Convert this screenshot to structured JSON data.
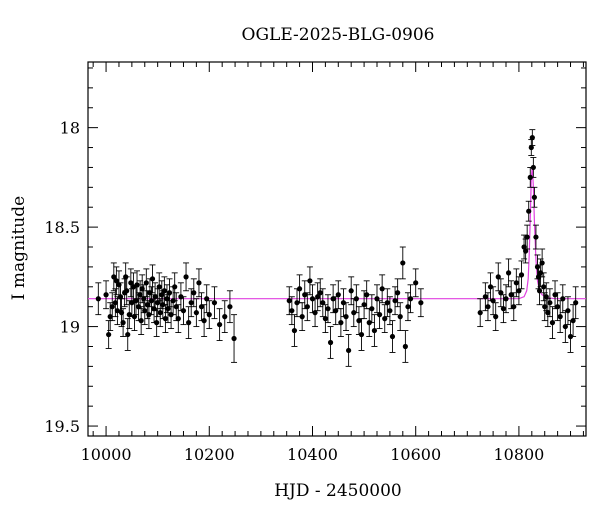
{
  "chart_data": {
    "type": "scatter",
    "title": "OGLE-2025-BLG-0906",
    "xlabel": "HJD - 2450000",
    "ylabel": "I magnitude",
    "xlim": [
      9965,
      10930
    ],
    "ylim": [
      19.55,
      17.67
    ],
    "y_inverted": true,
    "xticks": [
      10000,
      10200,
      10400,
      10600,
      10800
    ],
    "yticks": [
      18,
      18.5,
      19,
      19.5
    ],
    "ytick_labels": [
      "18",
      "18.5",
      "19",
      "19.5"
    ],
    "grid": false,
    "colors": {
      "points": "#000000",
      "model": "#e040e0"
    },
    "baseline_mag": 18.86,
    "model_curve": {
      "x": [
        9965,
        10780,
        10800,
        10810,
        10815,
        10818,
        10820,
        10822,
        10824,
        10826,
        10828,
        10830,
        10833,
        10836,
        10840,
        10845,
        10855,
        10870,
        10930
      ],
      "y": [
        18.86,
        18.86,
        18.86,
        18.85,
        18.82,
        18.76,
        18.64,
        18.45,
        18.25,
        18.2,
        18.3,
        18.47,
        18.66,
        18.77,
        18.82,
        18.84,
        18.855,
        18.86,
        18.86
      ]
    },
    "series": [
      {
        "x": [
          9985,
          10000,
          10005,
          10008,
          10012,
          10015,
          10018,
          10020,
          10022,
          10025,
          10028,
          10030,
          10033,
          10036,
          10038,
          10040,
          10042,
          10045,
          10048,
          10050,
          10053,
          10055,
          10058,
          10060,
          10063,
          10066,
          10068,
          10070,
          10073,
          10075,
          10078,
          10080,
          10083,
          10085,
          10088,
          10090,
          10093,
          10095,
          10098,
          10100,
          10103,
          10105,
          10108,
          10110,
          10113,
          10115,
          10118,
          10120,
          10123,
          10126,
          10130,
          10133,
          10136,
          10140,
          10145,
          10150,
          10155,
          10160,
          10165,
          10170,
          10175,
          10180,
          10185,
          10190,
          10195,
          10200,
          10210,
          10220,
          10230,
          10240,
          10248,
          10355,
          10360,
          10365,
          10370,
          10375,
          10380,
          10385,
          10390,
          10395,
          10400,
          10405,
          10410,
          10415,
          10420,
          10425,
          10430,
          10435,
          10440,
          10445,
          10450,
          10455,
          10460,
          10465,
          10470,
          10475,
          10480,
          10485,
          10490,
          10495,
          10500,
          10505,
          10510,
          10515,
          10520,
          10525,
          10530,
          10535,
          10540,
          10545,
          10550,
          10555,
          10560,
          10565,
          10570,
          10575,
          10580,
          10585,
          10590,
          10600,
          10610,
          10725,
          10735,
          10740,
          10745,
          10750,
          10755,
          10760,
          10765,
          10770,
          10775,
          10780,
          10785,
          10790,
          10795,
          10800,
          10805,
          10810,
          10813,
          10816,
          10819,
          10822,
          10824,
          10826,
          10828,
          10830,
          10833,
          10836,
          10838,
          10840,
          10842,
          10845,
          10848,
          10850,
          10853,
          10856,
          10860,
          10865,
          10870,
          10875,
          10880,
          10885,
          10890,
          10895,
          10900,
          10905,
          10910
        ],
        "y": [
          18.86,
          18.84,
          19.04,
          18.95,
          18.9,
          18.75,
          18.88,
          18.77,
          18.92,
          18.79,
          18.85,
          18.93,
          18.98,
          18.83,
          18.75,
          18.82,
          19.04,
          18.94,
          18.78,
          18.88,
          18.8,
          18.95,
          18.87,
          18.79,
          18.9,
          18.84,
          18.97,
          18.81,
          18.86,
          18.92,
          18.78,
          18.89,
          18.94,
          18.83,
          18.87,
          18.76,
          18.91,
          18.85,
          18.98,
          18.88,
          18.8,
          18.93,
          18.84,
          18.89,
          18.82,
          18.96,
          18.86,
          18.91,
          18.83,
          18.94,
          18.87,
          18.8,
          18.9,
          18.96,
          18.85,
          18.92,
          18.75,
          18.98,
          18.88,
          18.83,
          18.93,
          18.78,
          18.9,
          18.97,
          18.86,
          18.94,
          18.88,
          18.99,
          18.95,
          18.9,
          19.06,
          18.87,
          18.92,
          19.02,
          18.88,
          18.81,
          18.95,
          18.84,
          18.9,
          18.77,
          18.86,
          18.93,
          18.85,
          18.83,
          18.88,
          18.96,
          18.91,
          19.08,
          18.86,
          18.92,
          18.84,
          18.98,
          18.88,
          18.95,
          19.12,
          18.82,
          18.93,
          18.86,
          18.97,
          19.04,
          18.89,
          18.84,
          18.98,
          18.91,
          19.02,
          18.86,
          18.94,
          18.81,
          18.96,
          18.88,
          18.92,
          19.05,
          18.87,
          18.83,
          18.95,
          18.68,
          19.1,
          18.9,
          18.86,
          18.78,
          18.88,
          18.93,
          18.85,
          18.9,
          18.8,
          18.87,
          18.95,
          18.75,
          18.83,
          18.91,
          18.86,
          18.73,
          18.84,
          18.9,
          18.78,
          18.82,
          18.74,
          18.6,
          18.62,
          18.55,
          18.42,
          18.25,
          18.1,
          18.05,
          18.2,
          18.35,
          18.55,
          18.7,
          18.75,
          18.82,
          18.73,
          18.68,
          18.8,
          18.9,
          18.85,
          18.93,
          18.88,
          18.98,
          18.84,
          18.9,
          18.95,
          18.86,
          19.0,
          18.92,
          19.05,
          18.97,
          18.88
        ],
        "err": [
          0.08,
          0.07,
          0.07,
          0.07,
          0.07,
          0.07,
          0.07,
          0.07,
          0.07,
          0.07,
          0.07,
          0.07,
          0.07,
          0.07,
          0.07,
          0.07,
          0.08,
          0.07,
          0.07,
          0.07,
          0.07,
          0.07,
          0.07,
          0.07,
          0.07,
          0.07,
          0.07,
          0.07,
          0.07,
          0.07,
          0.07,
          0.07,
          0.07,
          0.07,
          0.07,
          0.07,
          0.07,
          0.07,
          0.07,
          0.07,
          0.07,
          0.07,
          0.07,
          0.07,
          0.07,
          0.07,
          0.07,
          0.07,
          0.07,
          0.07,
          0.07,
          0.07,
          0.07,
          0.07,
          0.07,
          0.07,
          0.07,
          0.08,
          0.07,
          0.07,
          0.07,
          0.07,
          0.07,
          0.08,
          0.07,
          0.07,
          0.08,
          0.08,
          0.08,
          0.08,
          0.12,
          0.07,
          0.07,
          0.08,
          0.07,
          0.07,
          0.07,
          0.07,
          0.07,
          0.07,
          0.07,
          0.07,
          0.07,
          0.07,
          0.07,
          0.07,
          0.07,
          0.08,
          0.07,
          0.07,
          0.07,
          0.07,
          0.07,
          0.07,
          0.08,
          0.07,
          0.07,
          0.07,
          0.07,
          0.08,
          0.07,
          0.07,
          0.07,
          0.07,
          0.08,
          0.07,
          0.07,
          0.07,
          0.07,
          0.07,
          0.07,
          0.08,
          0.07,
          0.07,
          0.07,
          0.08,
          0.08,
          0.07,
          0.07,
          0.07,
          0.07,
          0.07,
          0.07,
          0.07,
          0.07,
          0.07,
          0.07,
          0.07,
          0.07,
          0.07,
          0.07,
          0.07,
          0.07,
          0.07,
          0.07,
          0.07,
          0.07,
          0.06,
          0.06,
          0.06,
          0.05,
          0.05,
          0.04,
          0.04,
          0.05,
          0.05,
          0.06,
          0.06,
          0.06,
          0.07,
          0.07,
          0.07,
          0.07,
          0.07,
          0.07,
          0.07,
          0.07,
          0.08,
          0.07,
          0.07,
          0.08,
          0.07,
          0.08,
          0.07,
          0.08,
          0.08,
          0.08
        ]
      }
    ]
  }
}
